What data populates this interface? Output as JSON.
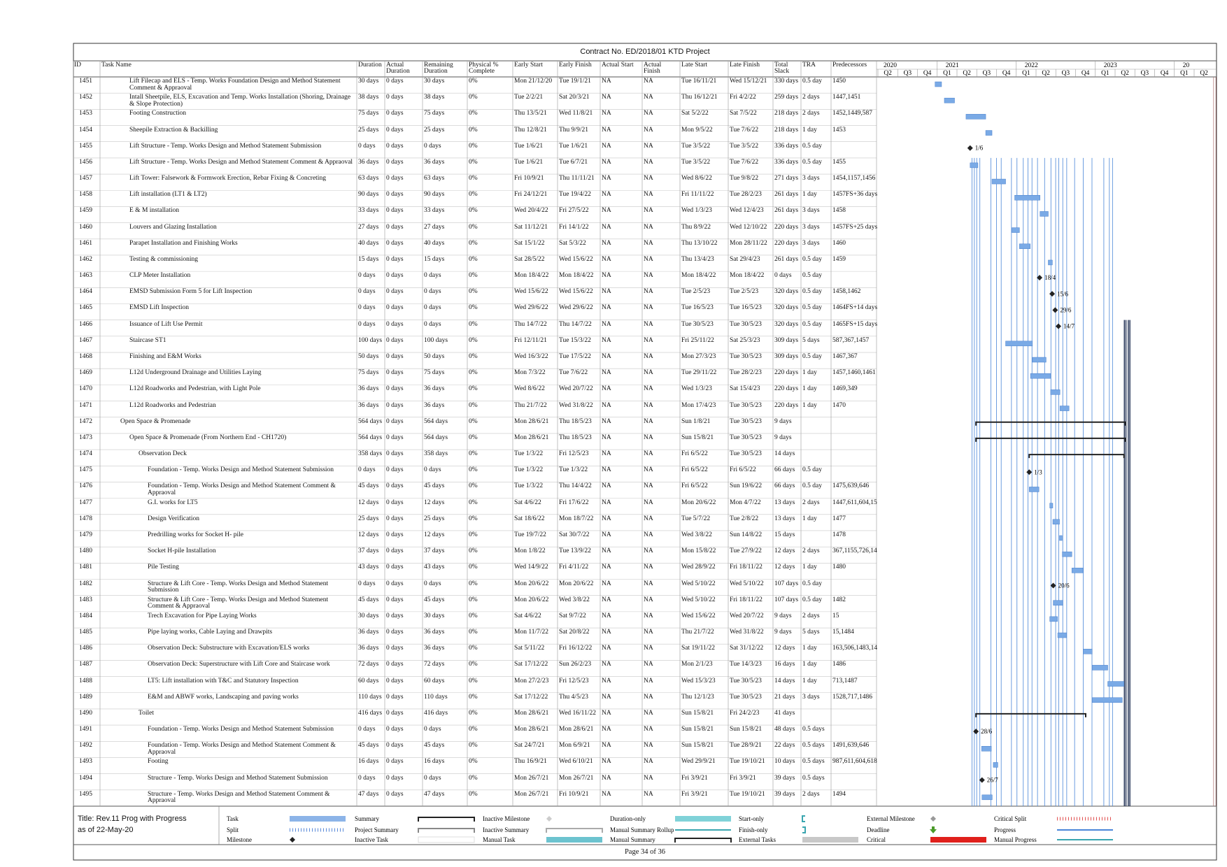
{
  "title": "Contract No. ED/2018/01 KTD Project",
  "table": {
    "header": [
      "ID",
      "Task Name",
      "Duration",
      "Actual Duration",
      "Remaining Duration",
      "Physical % Complete",
      "Early Start",
      "Early Finish",
      "Actual Start",
      "Actual Finish",
      "Late Start",
      "Late Finish",
      "Total Slack",
      "TRA",
      "Predecessors"
    ],
    "rows": [
      [
        "1451",
        "Lift Filecap and ELS - Temp. Works Foundation Design and Method Statement Comment & Appraoval",
        "30 days",
        "0 days",
        "30 days",
        "0%",
        "Mon 21/12/20",
        "Tue 19/1/21",
        "NA",
        "NA",
        "Tue 16/11/21",
        "Wed 15/12/21",
        "330 days",
        "0.5 day",
        "1450"
      ],
      [
        "1452",
        "Intall Sheetpile, ELS, Excavation and Temp. Works Installation (Shoring, Drainage & Slope Protection)",
        "38 days",
        "0 days",
        "38 days",
        "0%",
        "Tue 2/2/21",
        "Sat 20/3/21",
        "NA",
        "NA",
        "Thu 16/12/21",
        "Fri 4/2/22",
        "259 days",
        "2 days",
        "1447,1451"
      ],
      [
        "1453",
        "Footing Construction",
        "75 days",
        "0 days",
        "75 days",
        "0%",
        "Thu 13/5/21",
        "Wed 11/8/21",
        "NA",
        "NA",
        "Sat 5/2/22",
        "Sat 7/5/22",
        "218 days",
        "2 days",
        "1452,1449,587"
      ],
      [
        "1454",
        "Sheepile Extraction & Backilling",
        "25 days",
        "0 days",
        "25 days",
        "0%",
        "Thu 12/8/21",
        "Thu 9/9/21",
        "NA",
        "NA",
        "Mon 9/5/22",
        "Tue 7/6/22",
        "218 days",
        "1 day",
        "1453"
      ],
      [
        "1455",
        "Lift Structure - Temp. Works Design and Method Statement Submission",
        "0 days",
        "0 days",
        "0 days",
        "0%",
        "Tue 1/6/21",
        "Tue 1/6/21",
        "NA",
        "NA",
        "Tue 3/5/22",
        "Tue 3/5/22",
        "336 days",
        "0.5 day",
        null
      ],
      [
        "1456",
        "Lift Structure - Temp. Works Design and Method Statement Comment & Appraoval",
        "36 days",
        "0 days",
        "36 days",
        "0%",
        "Tue 1/6/21",
        "Tue 6/7/21",
        "NA",
        "NA",
        "Tue 3/5/22",
        "Tue 7/6/22",
        "336 days",
        "0.5 day",
        "1455"
      ],
      [
        "1457",
        "Lift Tower: Falsework & Formwork Erection, Rebar Fixing & Concreting",
        "63 days",
        "0 days",
        "63 days",
        "0%",
        "Fri 10/9/21",
        "Thu 11/11/21",
        "NA",
        "NA",
        "Wed 8/6/22",
        "Tue 9/8/22",
        "271 days",
        "3 days",
        "1454,1157,1456"
      ],
      [
        "1458",
        "Lift installation (LT1 & LT2)",
        "90 days",
        "0 days",
        "90 days",
        "0%",
        "Fri 24/12/21",
        "Tue 19/4/22",
        "NA",
        "NA",
        "Fri 11/11/22",
        "Tue 28/2/23",
        "261 days",
        "1 day",
        "1457FS+36 days"
      ],
      [
        "1459",
        "E & M installation",
        "33 days",
        "0 days",
        "33 days",
        "0%",
        "Wed 20/4/22",
        "Fri 27/5/22",
        "NA",
        "NA",
        "Wed 1/3/23",
        "Wed 12/4/23",
        "261 days",
        "3 days",
        "1458"
      ],
      [
        "1460",
        "Louvers and Glazing Installation",
        "27 days",
        "0 days",
        "27 days",
        "0%",
        "Sat 11/12/21",
        "Fri 14/1/22",
        "NA",
        "NA",
        "Thu 8/9/22",
        "Wed 12/10/22",
        "220 days",
        "3 days",
        "1457FS+25 days"
      ],
      [
        "1461",
        "Parapet Installation and Finishing Works",
        "40 days",
        "0 days",
        "40 days",
        "0%",
        "Sat 15/1/22",
        "Sat 5/3/22",
        "NA",
        "NA",
        "Thu 13/10/22",
        "Mon 28/11/22",
        "220 days",
        "3 days",
        "1460"
      ],
      [
        "1462",
        "Testing & commissioning",
        "15 days",
        "0 days",
        "15 days",
        "0%",
        "Sat 28/5/22",
        "Wed 15/6/22",
        "NA",
        "NA",
        "Thu 13/4/23",
        "Sat 29/4/23",
        "261 days",
        "0.5 day",
        "1459"
      ],
      [
        "1463",
        "CLP Meter Installation",
        "0 days",
        "0 days",
        "0 days",
        "0%",
        "Mon 18/4/22",
        "Mon 18/4/22",
        "NA",
        "NA",
        "Mon 18/4/22",
        "Mon 18/4/22",
        "0 days",
        "0.5 day",
        null
      ],
      [
        "1464",
        "EMSD Submission Form 5 for Lift Inspection",
        "0 days",
        "0 days",
        "0 days",
        "0%",
        "Wed 15/6/22",
        "Wed 15/6/22",
        "NA",
        "NA",
        "Tue 2/5/23",
        "Tue 2/5/23",
        "320 days",
        "0.5 day",
        "1458,1462"
      ],
      [
        "1465",
        "EMSD Lift Inspection",
        "0 days",
        "0 days",
        "0 days",
        "0%",
        "Wed 29/6/22",
        "Wed 29/6/22",
        "NA",
        "NA",
        "Tue 16/5/23",
        "Tue 16/5/23",
        "320 days",
        "0.5 day",
        "1464FS+14 days"
      ],
      [
        "1466",
        "Issuance of Lift Use Permit",
        "0 days",
        "0 days",
        "0 days",
        "0%",
        "Thu 14/7/22",
        "Thu 14/7/22",
        "NA",
        "NA",
        "Tue 30/5/23",
        "Tue 30/5/23",
        "320 days",
        "0.5 day",
        "1465FS+15 days"
      ],
      [
        "1467",
        "Staircase ST1",
        "100 days",
        "0 days",
        "100 days",
        "0%",
        "Fri 12/11/21",
        "Tue 15/3/22",
        "NA",
        "NA",
        "Fri 25/11/22",
        "Sat 25/3/23",
        "309 days",
        "5 days",
        "587,367,1457"
      ],
      [
        "1468",
        "Finishing and E&M Works",
        "50 days",
        "0 days",
        "50 days",
        "0%",
        "Wed 16/3/22",
        "Tue 17/5/22",
        "NA",
        "NA",
        "Mon 27/3/23",
        "Tue 30/5/23",
        "309 days",
        "0.5 day",
        "1467,367"
      ],
      [
        "1469",
        "L12d Underground Drainage and Utilities Laying",
        "75 days",
        "0 days",
        "75 days",
        "0%",
        "Mon 7/3/22",
        "Tue 7/6/22",
        "NA",
        "NA",
        "Tue 29/11/22",
        "Tue 28/2/23",
        "220 days",
        "1 day",
        "1457,1460,1461"
      ],
      [
        "1470",
        "L12d Roadworks and Pedestrian, with Light Pole",
        "36 days",
        "0 days",
        "36 days",
        "0%",
        "Wed 8/6/22",
        "Wed 20/7/22",
        "NA",
        "NA",
        "Wed 1/3/23",
        "Sat 15/4/23",
        "220 days",
        "1 day",
        "1469,349"
      ],
      [
        "1471",
        "L12d Roadworks and Pedestrian",
        "36 days",
        "0 days",
        "36 days",
        "0%",
        "Thu 21/7/22",
        "Wed 31/8/22",
        "NA",
        "NA",
        "Mon 17/4/23",
        "Tue 30/5/23",
        "220 days",
        "1 day",
        "1470"
      ],
      [
        "1472",
        "Open Space & Promenade",
        "564 days",
        "0 days",
        "564 days",
        "0%",
        "Mon 28/6/21",
        "Thu 18/5/23",
        "NA",
        "NA",
        "Sun 1/8/21",
        "Tue 30/5/23",
        "9 days",
        null,
        null
      ],
      [
        "1473",
        "Open Space & Promenade (From Northern End - CH1720)",
        "564 days",
        "0 days",
        "564 days",
        "0%",
        "Mon 28/6/21",
        "Thu 18/5/23",
        "NA",
        "NA",
        "Sun 15/8/21",
        "Tue 30/5/23",
        "9 days",
        null,
        null
      ],
      [
        "1474",
        "Observation Deck",
        "358 days",
        "0 days",
        "358 days",
        "0%",
        "Tue 1/3/22",
        "Fri 12/5/23",
        "NA",
        "NA",
        "Fri 6/5/22",
        "Tue 30/5/23",
        "14 days",
        null,
        null
      ],
      [
        "1475",
        "Foundation - Temp. Works Design and Method Statement Submission",
        "0 days",
        "0 days",
        "0 days",
        "0%",
        "Tue 1/3/22",
        "Tue 1/3/22",
        "NA",
        "NA",
        "Fri 6/5/22",
        "Fri 6/5/22",
        "66 days",
        "0.5 day",
        null
      ],
      [
        "1476",
        "Foundation - Temp. Works Design and Method Statement Comment & Appraoval",
        "45 days",
        "0 days",
        "45 days",
        "0%",
        "Tue 1/3/22",
        "Thu 14/4/22",
        "NA",
        "NA",
        "Fri 6/5/22",
        "Sun 19/6/22",
        "66 days",
        "0.5 day",
        "1475,639,646"
      ],
      [
        "1477",
        "G.I. works for LT5",
        "12 days",
        "0 days",
        "12 days",
        "0%",
        "Sat 4/6/22",
        "Fri 17/6/22",
        "NA",
        "NA",
        "Mon 20/6/22",
        "Mon 4/7/22",
        "13 days",
        "2 days",
        "1447,611,604,15"
      ],
      [
        "1478",
        "Design Verification",
        "25 days",
        "0 days",
        "25 days",
        "0%",
        "Sat 18/6/22",
        "Mon 18/7/22",
        "NA",
        "NA",
        "Tue 5/7/22",
        "Tue 2/8/22",
        "13 days",
        "1 day",
        "1477"
      ],
      [
        "1479",
        "Predrilling works for Socket H- pile",
        "12 days",
        "0 days",
        "12 days",
        "0%",
        "Tue 19/7/22",
        "Sat 30/7/22",
        "NA",
        "NA",
        "Wed 3/8/22",
        "Sun 14/8/22",
        "15 days",
        null,
        "1478"
      ],
      [
        "1480",
        "Socket H-pile Installation",
        "37 days",
        "0 days",
        "37 days",
        "0%",
        "Mon 1/8/22",
        "Tue 13/9/22",
        "NA",
        "NA",
        "Mon 15/8/22",
        "Tue 27/9/22",
        "12 days",
        "2 days",
        "367,1155,726,14"
      ],
      [
        "1481",
        "Pile Testing",
        "43 days",
        "0 days",
        "43 days",
        "0%",
        "Wed 14/9/22",
        "Fri 4/11/22",
        "NA",
        "NA",
        "Wed 28/9/22",
        "Fri 18/11/22",
        "12 days",
        "1 day",
        "1480"
      ],
      [
        "1482",
        "Structure & Lift Core - Temp. Works Design and Method Statement Submission",
        "0 days",
        "0 days",
        "0 days",
        "0%",
        "Mon 20/6/22",
        "Mon 20/6/22",
        "NA",
        "NA",
        "Wed 5/10/22",
        "Wed 5/10/22",
        "107 days",
        "0.5 day",
        null
      ],
      [
        "1483",
        "Structure & Lift Core - Temp. Works Design and Method Statement Comment & Appraoval",
        "45 days",
        "0 days",
        "45 days",
        "0%",
        "Mon 20/6/22",
        "Wed 3/8/22",
        "NA",
        "NA",
        "Wed 5/10/22",
        "Fri 18/11/22",
        "107 days",
        "0.5 day",
        "1482"
      ],
      [
        "1484",
        "Trech Excavation for Pipe Laying Works",
        "30 days",
        "0 days",
        "30 days",
        "0%",
        "Sat 4/6/22",
        "Sat 9/7/22",
        "NA",
        "NA",
        "Wed 15/6/22",
        "Wed 20/7/22",
        "9 days",
        "2 days",
        "15"
      ],
      [
        "1485",
        "Pipe laying works, Cable Laying and Drawpits",
        "36 days",
        "0 days",
        "36 days",
        "0%",
        "Mon 11/7/22",
        "Sat 20/8/22",
        "NA",
        "NA",
        "Thu 21/7/22",
        "Wed 31/8/22",
        "9 days",
        "5 days",
        "15,1484"
      ],
      [
        "1486",
        "Observation Deck: Substructure with Excavation/ELS works",
        "36 days",
        "0 days",
        "36 days",
        "0%",
        "Sat 5/11/22",
        "Fri 16/12/22",
        "NA",
        "NA",
        "Sat 19/11/22",
        "Sat 31/12/22",
        "12 days",
        "1 day",
        "163,506,1483,14"
      ],
      [
        "1487",
        "Observation Deck: Superstructure with Lift Core and Staircase work",
        "72 days",
        "0 days",
        "72 days",
        "0%",
        "Sat 17/12/22",
        "Sun 26/2/23",
        "NA",
        "NA",
        "Mon 2/1/23",
        "Tue 14/3/23",
        "16 days",
        "1 day",
        "1486"
      ],
      [
        "1488",
        "LT5: Lift installation with T&C and Statutory Inspection",
        "60 days",
        "0 days",
        "60 days",
        "0%",
        "Mon 27/2/23",
        "Fri 12/5/23",
        "NA",
        "NA",
        "Wed 15/3/23",
        "Tue 30/5/23",
        "14 days",
        "1 day",
        "713,1487"
      ],
      [
        "1489",
        "E&M and ABWF works, Landscaping and paving works",
        "110 days",
        "0 days",
        "110 days",
        "0%",
        "Sat 17/12/22",
        "Thu 4/5/23",
        "NA",
        "NA",
        "Thu 12/1/23",
        "Tue 30/5/23",
        "21 days",
        "3 days",
        "1528,717,1486"
      ],
      [
        "1490",
        "Toilet",
        "416 days",
        "0 days",
        "416 days",
        "0%",
        "Mon 28/6/21",
        "Wed 16/11/22",
        "NA",
        "NA",
        "Sun 15/8/21",
        "Fri 24/2/23",
        "41 days",
        null,
        null
      ],
      [
        "1491",
        "Foundation - Temp. Works Design and Method Statement Submission",
        "0 days",
        "0 days",
        "0 days",
        "0%",
        "Mon 28/6/21",
        "Mon 28/6/21",
        "NA",
        "NA",
        "Sun 15/8/21",
        "Sun 15/8/21",
        "48 days",
        "0.5 days",
        null
      ],
      [
        "1492",
        "Foundation - Temp. Works Design and Method Statement Comment & Appraoval",
        "45 days",
        "0 days",
        "45 days",
        "0%",
        "Sat 24/7/21",
        "Mon 6/9/21",
        "NA",
        "NA",
        "Sun 15/8/21",
        "Tue 28/9/21",
        "22 days",
        "0.5 days",
        "1491,639,646"
      ],
      [
        "1493",
        "Footing",
        "16 days",
        "0 days",
        "16 days",
        "0%",
        "Thu 16/9/21",
        "Wed 6/10/21",
        "NA",
        "NA",
        "Wed 29/9/21",
        "Tue 19/10/21",
        "10 days",
        "0.5 days",
        "987,611,604,618"
      ],
      [
        "1494",
        "Structure - Temp. Works Design and Method Statement Submission",
        "0 days",
        "0 days",
        "0 days",
        "0%",
        "Mon 26/7/21",
        "Mon 26/7/21",
        "NA",
        "NA",
        "Fri 3/9/21",
        "Fri 3/9/21",
        "39 days",
        "0.5 days",
        null
      ],
      [
        "1495",
        "Structure - Temp. Works Design and Method Statement Comment & Appraoval",
        "47 days",
        "0 days",
        "47 days",
        "0%",
        "Mon 26/7/21",
        "Fri 10/9/21",
        "NA",
        "NA",
        "Fri 3/9/21",
        "Tue 19/10/21",
        "39 days",
        "2 days",
        "1494"
      ]
    ]
  },
  "gantt": {
    "years": [
      "2020",
      "2021",
      "2022",
      "2023",
      "20"
    ],
    "quarters": [
      "Q2",
      "Q3",
      "Q4",
      "Q1",
      "Q2",
      "Q3",
      "Q4",
      "Q1",
      "Q2",
      "Q3",
      "Q4",
      "Q1",
      "Q2",
      "Q3",
      "Q4",
      "Q1",
      "Q2"
    ],
    "bar_labels": [
      null,
      null,
      null,
      null,
      "1/6",
      null,
      null,
      null,
      null,
      null,
      null,
      null,
      "18/4",
      "15/6",
      "29/6",
      "14/7",
      null,
      null,
      null,
      null,
      null,
      null,
      null,
      null,
      "1/3",
      null,
      null,
      null,
      null,
      null,
      null,
      "20/6",
      null,
      null,
      null,
      null,
      null,
      null,
      null,
      null,
      "28/6",
      null,
      null,
      "26/7",
      null
    ]
  },
  "legend": {
    "title": [
      "Title: Rev.11 Prog with Progress",
      "as of 22-May-20"
    ],
    "items": [
      "Task",
      "Split",
      "Milestone",
      "Summary",
      "Project Summary",
      "Inactive Task",
      "Inactive Milestone",
      "Inactive Summary",
      "Manual Task",
      "Duration-only",
      "Manual Summary Rollup",
      "Manual Summary",
      "Start-only",
      "Finish-only",
      "External Tasks",
      "External Milestone",
      "Deadline",
      "Critical",
      "Critical Split",
      "Progress",
      "Manual Progress"
    ]
  },
  "footer": "Page 34 of 36"
}
